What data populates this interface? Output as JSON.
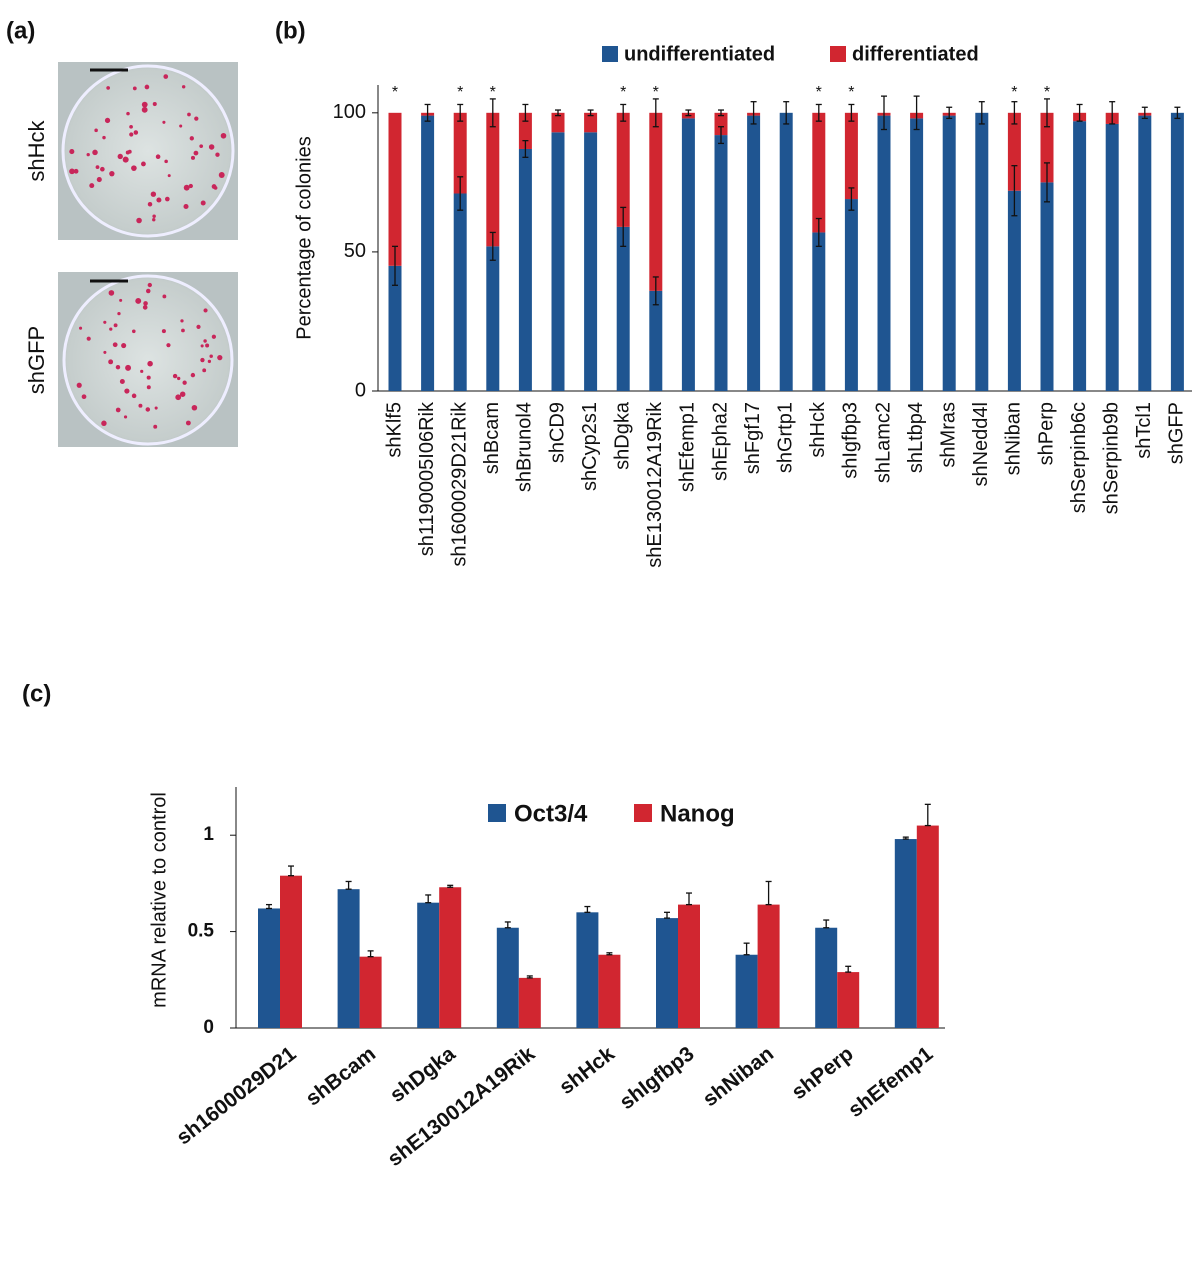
{
  "panel_labels": [
    "(a)",
    "(b)",
    "(c)"
  ],
  "images": [
    {
      "label": "shHck"
    },
    {
      "label": "shGFP"
    }
  ],
  "chart_data": [
    {
      "type": "stacked_bar",
      "y_label": "Percentage of colonies",
      "categories": [
        "shKlf5",
        "sh1190005I06Rik",
        "sh1600029D21Rik",
        "shBcam",
        "shBrunol4",
        "shCD9",
        "shCyp2s1",
        "shDgka",
        "shE130012A19Rik",
        "shEfemp1",
        "shEpha2",
        "shFgf17",
        "shGrtp1",
        "shHck",
        "shIgfbp3",
        "shLamc2",
        "shLtbp4",
        "shMras",
        "shNedd4l",
        "shNiban",
        "shPerp",
        "shSerpinb6c",
        "shSerpinb9b",
        "shTcl1",
        "shGFP"
      ],
      "series": [
        {
          "name": "undifferentiated",
          "color": "#1f5591",
          "values": [
            45,
            99,
            71,
            52,
            87,
            93,
            93,
            59,
            36,
            98,
            92,
            99,
            100,
            57,
            69,
            99,
            98,
            99,
            100,
            72,
            75,
            97,
            96,
            99,
            100
          ],
          "errors": [
            7,
            0,
            6,
            5,
            3,
            0,
            0,
            7,
            5,
            0,
            3,
            0,
            0,
            5,
            4,
            0,
            0,
            0,
            0,
            9,
            7,
            0,
            0,
            0,
            0
          ]
        },
        {
          "name": "differentiated",
          "color": "#d12630",
          "values": [
            55,
            1,
            29,
            48,
            13,
            7,
            7,
            41,
            64,
            2,
            8,
            1,
            0,
            43,
            31,
            1,
            2,
            1,
            0,
            28,
            25,
            3,
            4,
            1,
            0
          ],
          "errors": [
            0,
            3,
            3,
            5,
            3,
            1,
            1,
            3,
            5,
            1,
            1,
            4,
            4,
            3,
            3,
            6,
            6,
            2,
            4,
            4,
            5,
            3,
            4,
            2,
            2
          ]
        }
      ],
      "annotations": [
        "*",
        null,
        "*",
        "*",
        null,
        null,
        null,
        "*",
        "*",
        null,
        null,
        null,
        null,
        "*",
        "*",
        null,
        null,
        null,
        null,
        "*",
        "*",
        null,
        null,
        null,
        null
      ],
      "ylim": [
        0,
        110
      ],
      "yticks": [
        0,
        50,
        100
      ],
      "legend": "top"
    },
    {
      "type": "grouped_bar",
      "y_label": "mRNA relative to control",
      "categories": [
        "sh1600029D21",
        "shBcam",
        "shDgka",
        "shE130012A19Rik",
        "shHck",
        "shIgfbp3",
        "shNiban",
        "shPerp",
        "shEfemp1"
      ],
      "series": [
        {
          "name": "Oct3/4",
          "color": "#1f5591",
          "values": [
            0.62,
            0.72,
            0.65,
            0.52,
            0.6,
            0.57,
            0.38,
            0.52,
            0.98
          ],
          "errors": [
            0.02,
            0.04,
            0.04,
            0.03,
            0.03,
            0.03,
            0.06,
            0.04,
            0.01
          ]
        },
        {
          "name": "Nanog",
          "color": "#d12630",
          "values": [
            0.79,
            0.37,
            0.73,
            0.26,
            0.38,
            0.64,
            0.64,
            0.29,
            1.05
          ],
          "errors": [
            0.05,
            0.03,
            0.01,
            0.01,
            0.01,
            0.06,
            0.12,
            0.03,
            0.11
          ]
        }
      ],
      "ylim": [
        0,
        1.25
      ],
      "yticks": [
        0,
        0.5,
        1
      ],
      "legend": "top"
    }
  ]
}
